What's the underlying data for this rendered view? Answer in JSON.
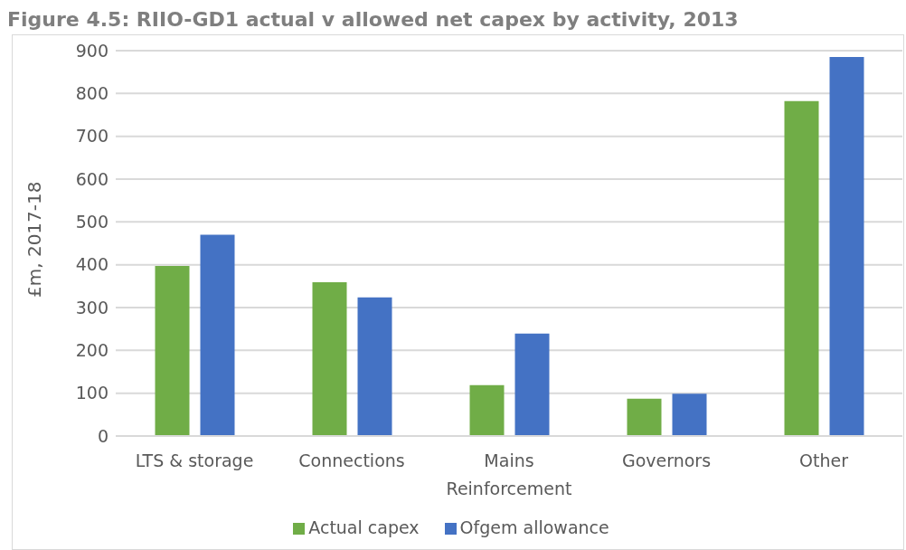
{
  "chart_data": {
    "type": "bar",
    "title": "Figure 4.5: RIIO-GD1 actual v allowed net capex by activity, 2013",
    "ylabel": "£m, 2017-18",
    "categories": [
      "LTS & storage",
      "Connections",
      "Mains Reinforcement",
      "Governors",
      "Other"
    ],
    "series": [
      {
        "name": "Actual capex",
        "color": "#70ad47",
        "values": [
          397,
          359,
          119,
          87,
          782
        ]
      },
      {
        "name": "Ofgem allowance",
        "color": "#4472c4",
        "values": [
          470,
          324,
          239,
          99,
          885
        ]
      }
    ],
    "ylim": [
      0,
      900
    ],
    "yticks": [
      0,
      100,
      200,
      300,
      400,
      500,
      600,
      700,
      800,
      900
    ],
    "grid": "y",
    "legend": "bottom"
  }
}
